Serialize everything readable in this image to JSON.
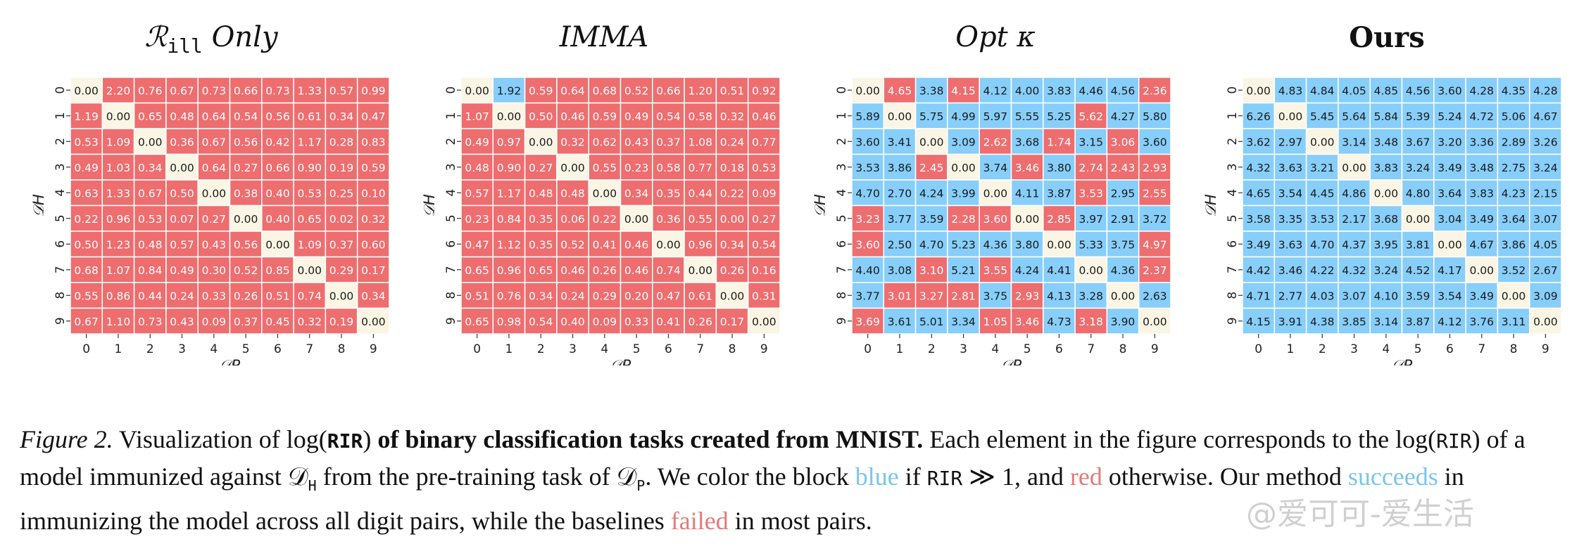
{
  "colors": {
    "blue": "#87CEFA",
    "red": "#EE6D6F",
    "diag": "#FAF5E4"
  },
  "chart_data": [
    {
      "type": "heatmap",
      "title_prefix": "ℛ",
      "title_sub": "ill",
      "title_suffix": " Only",
      "xlabel": "𝒟P",
      "ylabel": "𝒟H",
      "x_ticks": [
        "0",
        "1",
        "2",
        "3",
        "4",
        "5",
        "6",
        "7",
        "8",
        "9"
      ],
      "y_ticks": [
        "0",
        "1",
        "2",
        "3",
        "4",
        "5",
        "6",
        "7",
        "8",
        "9"
      ],
      "values": [
        [
          0.0,
          2.2,
          0.76,
          0.67,
          0.73,
          0.66,
          0.73,
          1.33,
          0.57,
          0.99
        ],
        [
          1.19,
          0.0,
          0.65,
          0.48,
          0.64,
          0.54,
          0.56,
          0.61,
          0.34,
          0.47
        ],
        [
          0.53,
          1.09,
          0.0,
          0.36,
          0.67,
          0.56,
          0.42,
          1.17,
          0.28,
          0.83
        ],
        [
          0.49,
          1.03,
          0.34,
          0.0,
          0.64,
          0.27,
          0.66,
          0.9,
          0.19,
          0.59
        ],
        [
          0.63,
          1.33,
          0.67,
          0.5,
          0.0,
          0.38,
          0.4,
          0.53,
          0.25,
          0.1
        ],
        [
          0.22,
          0.96,
          0.53,
          0.07,
          0.27,
          0.0,
          0.4,
          0.65,
          0.02,
          0.32
        ],
        [
          0.5,
          1.23,
          0.48,
          0.57,
          0.43,
          0.56,
          0.0,
          1.09,
          0.37,
          0.6
        ],
        [
          0.68,
          1.07,
          0.84,
          0.49,
          0.3,
          0.52,
          0.85,
          0.0,
          0.29,
          0.17
        ],
        [
          0.55,
          0.86,
          0.44,
          0.24,
          0.33,
          0.26,
          0.51,
          0.74,
          0.0,
          0.34
        ],
        [
          0.67,
          1.1,
          0.73,
          0.43,
          0.09,
          0.37,
          0.45,
          0.32,
          0.19,
          0.0
        ]
      ],
      "blue_cells": []
    },
    {
      "type": "heatmap",
      "title": "IMMA",
      "xlabel": "𝒟P",
      "ylabel": "𝒟H",
      "x_ticks": [
        "0",
        "1",
        "2",
        "3",
        "4",
        "5",
        "6",
        "7",
        "8",
        "9"
      ],
      "y_ticks": [
        "0",
        "1",
        "2",
        "3",
        "4",
        "5",
        "6",
        "7",
        "8",
        "9"
      ],
      "values": [
        [
          0.0,
          1.92,
          0.59,
          0.64,
          0.68,
          0.52,
          0.66,
          1.2,
          0.51,
          0.92
        ],
        [
          1.07,
          0.0,
          0.5,
          0.46,
          0.59,
          0.49,
          0.54,
          0.58,
          0.32,
          0.46
        ],
        [
          0.49,
          0.97,
          0.0,
          0.32,
          0.62,
          0.43,
          0.37,
          1.08,
          0.24,
          0.77
        ],
        [
          0.48,
          0.9,
          0.27,
          0.0,
          0.55,
          0.23,
          0.58,
          0.77,
          0.18,
          0.53
        ],
        [
          0.57,
          1.17,
          0.48,
          0.48,
          0.0,
          0.34,
          0.35,
          0.44,
          0.22,
          0.09
        ],
        [
          0.23,
          0.84,
          0.35,
          0.06,
          0.22,
          0.0,
          0.36,
          0.55,
          0.0,
          0.27
        ],
        [
          0.47,
          1.12,
          0.35,
          0.52,
          0.41,
          0.46,
          0.0,
          0.96,
          0.34,
          0.54
        ],
        [
          0.65,
          0.96,
          0.65,
          0.46,
          0.26,
          0.46,
          0.74,
          0.0,
          0.26,
          0.16
        ],
        [
          0.51,
          0.76,
          0.34,
          0.24,
          0.29,
          0.2,
          0.47,
          0.61,
          0.0,
          0.31
        ],
        [
          0.65,
          0.98,
          0.54,
          0.4,
          0.09,
          0.33,
          0.41,
          0.26,
          0.17,
          0.0
        ]
      ],
      "blue_cells": [
        [
          0,
          1
        ]
      ]
    },
    {
      "type": "heatmap",
      "title": "Opt κ",
      "xlabel": "𝒟P",
      "ylabel": "𝒟H",
      "x_ticks": [
        "0",
        "1",
        "2",
        "3",
        "4",
        "5",
        "6",
        "7",
        "8",
        "9"
      ],
      "y_ticks": [
        "0",
        "1",
        "2",
        "3",
        "4",
        "5",
        "6",
        "7",
        "8",
        "9"
      ],
      "values": [
        [
          0.0,
          4.65,
          3.38,
          4.15,
          4.12,
          4.0,
          3.83,
          4.46,
          4.56,
          2.36
        ],
        [
          5.89,
          0.0,
          5.75,
          4.99,
          5.97,
          5.55,
          5.25,
          5.62,
          4.27,
          5.8
        ],
        [
          3.6,
          3.41,
          0.0,
          3.09,
          2.62,
          3.68,
          1.74,
          3.15,
          3.06,
          3.6
        ],
        [
          3.53,
          3.86,
          2.45,
          0.0,
          3.74,
          3.46,
          3.8,
          2.74,
          2.43,
          2.93
        ],
        [
          4.7,
          2.7,
          4.24,
          3.99,
          0.0,
          4.11,
          3.87,
          3.53,
          2.95,
          2.55
        ],
        [
          3.23,
          3.77,
          3.59,
          2.28,
          3.6,
          0.0,
          2.85,
          3.97,
          2.91,
          3.72
        ],
        [
          3.6,
          2.5,
          4.7,
          5.23,
          4.36,
          3.8,
          0.0,
          5.33,
          3.75,
          4.97
        ],
        [
          4.4,
          3.08,
          3.1,
          5.21,
          3.55,
          4.24,
          4.41,
          0.0,
          4.36,
          2.37
        ],
        [
          3.77,
          3.01,
          3.27,
          2.81,
          3.75,
          2.93,
          4.13,
          3.28,
          0.0,
          2.63
        ],
        [
          3.69,
          3.61,
          5.01,
          3.34,
          1.05,
          3.46,
          4.73,
          3.18,
          3.9,
          0.0
        ]
      ],
      "red_cells": [
        [
          0,
          1
        ],
        [
          0,
          3
        ],
        [
          0,
          9
        ],
        [
          1,
          7
        ],
        [
          2,
          4
        ],
        [
          2,
          6
        ],
        [
          2,
          8
        ],
        [
          3,
          2
        ],
        [
          3,
          5
        ],
        [
          3,
          7
        ],
        [
          3,
          8
        ],
        [
          3,
          9
        ],
        [
          4,
          7
        ],
        [
          4,
          9
        ],
        [
          5,
          0
        ],
        [
          5,
          3
        ],
        [
          5,
          4
        ],
        [
          5,
          6
        ],
        [
          6,
          0
        ],
        [
          6,
          9
        ],
        [
          7,
          2
        ],
        [
          7,
          4
        ],
        [
          7,
          9
        ],
        [
          8,
          1
        ],
        [
          8,
          2
        ],
        [
          8,
          3
        ],
        [
          8,
          5
        ],
        [
          9,
          0
        ],
        [
          9,
          4
        ],
        [
          9,
          5
        ],
        [
          9,
          7
        ]
      ]
    },
    {
      "type": "heatmap",
      "title": "Ours",
      "xlabel": "𝒟P",
      "ylabel": "𝒟H",
      "x_ticks": [
        "0",
        "1",
        "2",
        "3",
        "4",
        "5",
        "6",
        "7",
        "8",
        "9"
      ],
      "y_ticks": [
        "0",
        "1",
        "2",
        "3",
        "4",
        "5",
        "6",
        "7",
        "8",
        "9"
      ],
      "values": [
        [
          0.0,
          4.83,
          4.84,
          4.05,
          4.85,
          4.56,
          3.6,
          4.28,
          4.35,
          4.28
        ],
        [
          6.26,
          0.0,
          5.45,
          5.64,
          5.84,
          5.39,
          5.24,
          4.72,
          5.06,
          4.67
        ],
        [
          3.62,
          2.97,
          0.0,
          3.14,
          3.48,
          3.67,
          3.2,
          3.36,
          2.89,
          3.26
        ],
        [
          4.32,
          3.63,
          3.21,
          0.0,
          3.83,
          3.24,
          3.49,
          3.48,
          2.75,
          3.24
        ],
        [
          4.65,
          3.54,
          4.45,
          4.86,
          0.0,
          4.8,
          3.64,
          3.83,
          4.23,
          2.15
        ],
        [
          3.58,
          3.35,
          3.53,
          2.17,
          3.68,
          0.0,
          3.04,
          3.49,
          3.64,
          3.07
        ],
        [
          3.49,
          3.63,
          4.7,
          4.37,
          3.95,
          3.81,
          0.0,
          4.67,
          3.86,
          4.05
        ],
        [
          4.42,
          3.46,
          4.22,
          4.32,
          3.24,
          4.52,
          4.17,
          0.0,
          3.52,
          2.67
        ],
        [
          4.71,
          2.77,
          4.03,
          3.07,
          4.1,
          3.59,
          3.54,
          3.49,
          0.0,
          3.09
        ],
        [
          4.15,
          3.91,
          4.38,
          3.85,
          3.14,
          3.87,
          4.12,
          3.76,
          3.11,
          0.0
        ]
      ],
      "red_cells": []
    }
  ],
  "caption": {
    "fig": "Figure 2.",
    "p1": " Visualization of log(",
    "rir_bold": "RIR",
    "p2": ")",
    "bold_rest": " of binary classification tasks created from MNIST.",
    "p3": " Each element in the figure corresponds to the log(",
    "rir": "RIR",
    "p4": ") of a model immunized against 𝒟",
    "sub_h": "H",
    "p5": " from the pre-training task of 𝒟",
    "sub_p": "P",
    "p6": ". We color the block ",
    "blue_word": "blue",
    "p7": " if ",
    "rir2": "RIR",
    "p8": " ≫ 1, and ",
    "red_word": "red",
    "p9": " otherwise. Our method ",
    "succeeds": "succeeds",
    "p10": " in immunizing the model across all digit pairs, while the baselines ",
    "failed": "failed",
    "p11": " in most pairs."
  },
  "watermark": "@爱可可-爱生活"
}
